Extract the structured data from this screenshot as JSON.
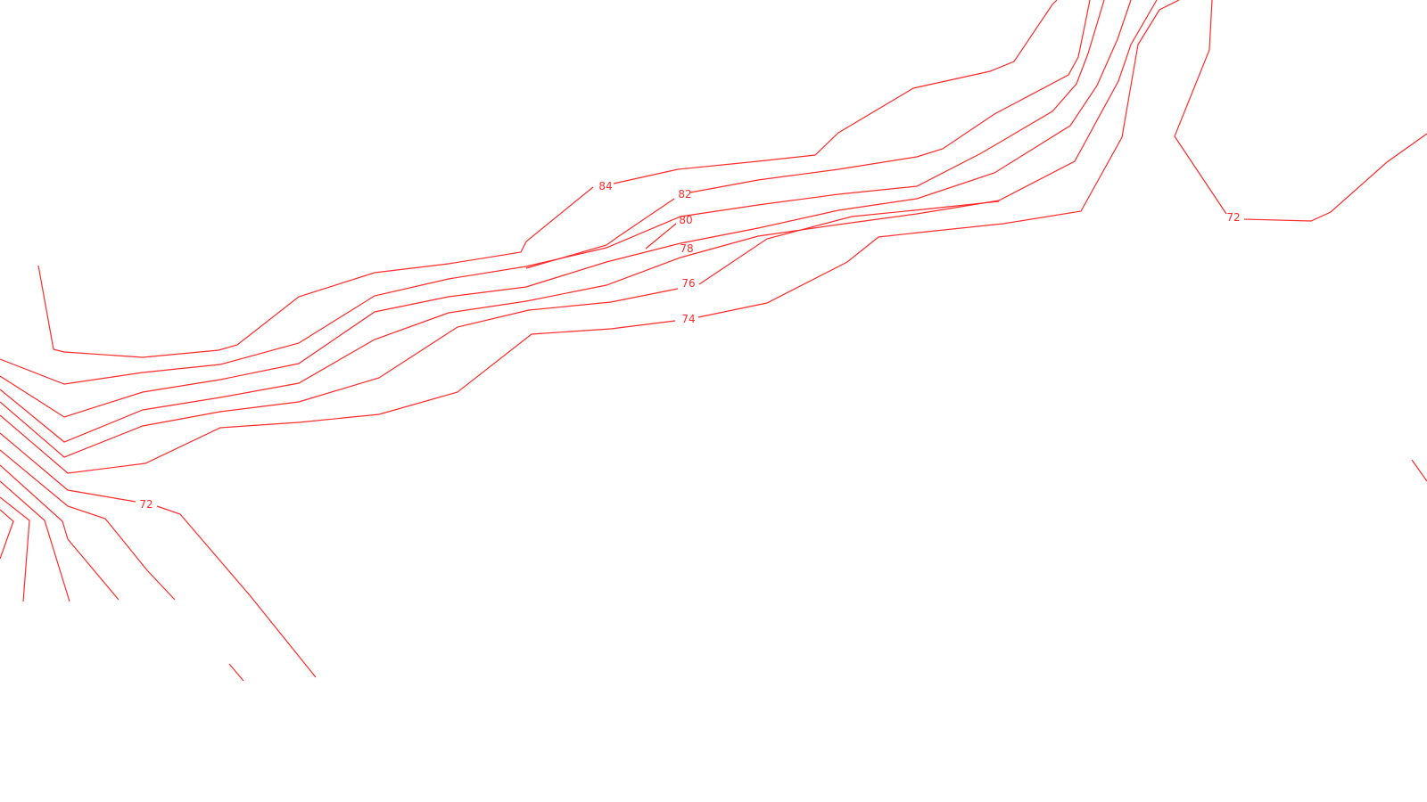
{
  "map": {
    "type": "contour-map",
    "line_color": "#ff2a2a",
    "background": "#ffffff",
    "contour_levels": [
      {
        "level": 84,
        "label": "84"
      },
      {
        "level": 82,
        "label": "82"
      },
      {
        "level": 80,
        "label": "80"
      },
      {
        "level": 78,
        "label": "78"
      },
      {
        "level": 76,
        "label": "76"
      },
      {
        "level": 74,
        "label": "74"
      },
      {
        "level": 72,
        "label": "72"
      },
      {
        "level": 72,
        "label": "72"
      }
    ]
  }
}
